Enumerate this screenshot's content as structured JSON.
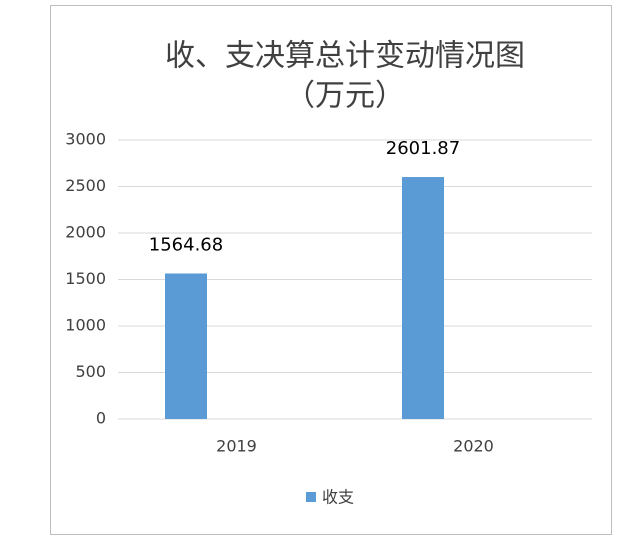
{
  "chart_data": {
    "type": "bar",
    "title": "收、支决算总计变动情况图",
    "subtitle": "（万元）",
    "categories": [
      "2019",
      "2020"
    ],
    "series": [
      {
        "name": "收支",
        "color": "#5b9bd5",
        "values": [
          1564.68,
          2601.87
        ]
      }
    ],
    "ylim": [
      0,
      3000
    ],
    "yticks": [
      0,
      500,
      1000,
      1500,
      2000,
      2500,
      3000
    ],
    "grid": true,
    "legend": "bottom",
    "data_labels": true
  }
}
